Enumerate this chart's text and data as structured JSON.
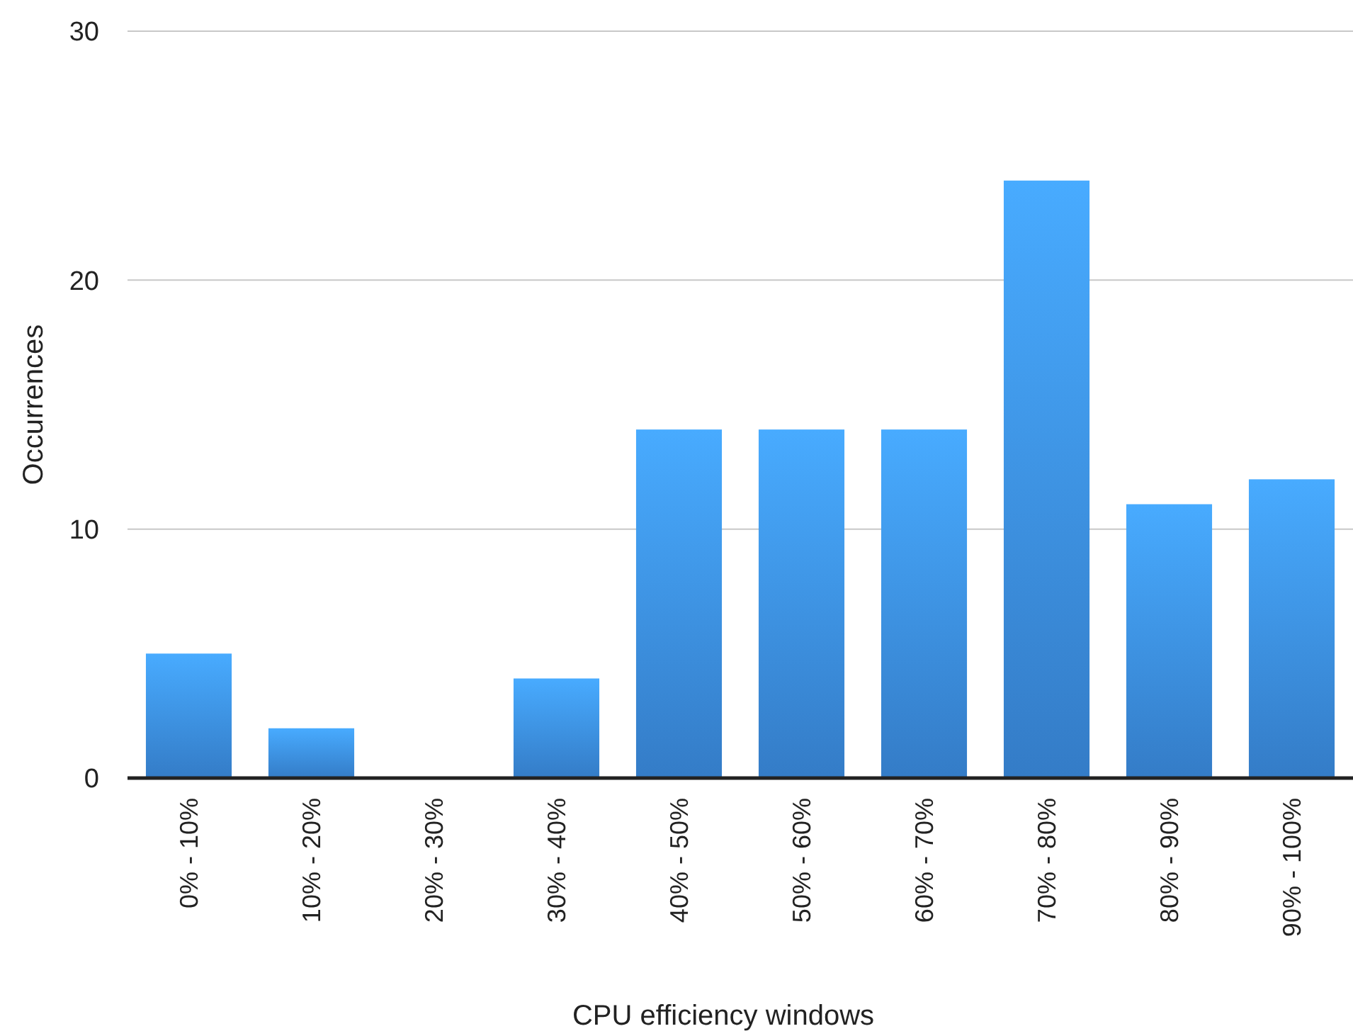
{
  "chart_data": {
    "type": "bar",
    "xlabel": "CPU efficiency windows",
    "ylabel": "Occurrences",
    "categories": [
      "0% - 10%",
      "10% - 20%",
      "20% - 30%",
      "30% - 40%",
      "40% - 50%",
      "50% - 60%",
      "60% - 70%",
      "70% - 80%",
      "80% - 90%",
      "90% - 100%"
    ],
    "values": [
      5,
      2,
      0,
      4,
      14,
      14,
      14,
      24,
      11,
      12
    ],
    "color": "#3d92ea",
    "ylim": [
      0,
      30
    ],
    "yticks": [
      0,
      10,
      20,
      30
    ],
    "grid": "y"
  }
}
